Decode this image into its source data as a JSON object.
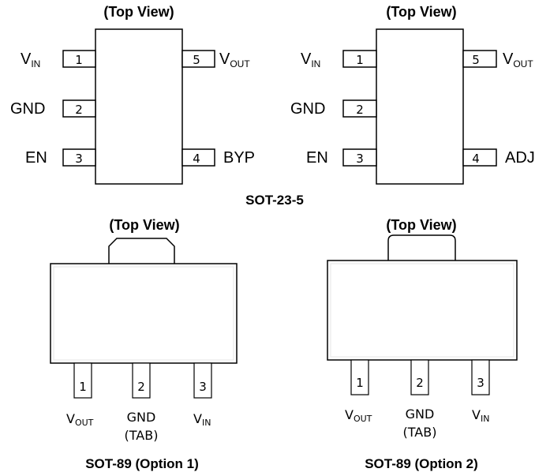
{
  "top_view_label": "(Top View)",
  "sot23_package_label": "SOT-23-5",
  "sot23_left": {
    "pins": [
      {
        "num": "1",
        "name": "V",
        "sub": "IN"
      },
      {
        "num": "2",
        "name": "GND",
        "sub": ""
      },
      {
        "num": "3",
        "name": "EN",
        "sub": ""
      },
      {
        "num": "4",
        "name": "BYP",
        "sub": ""
      },
      {
        "num": "5",
        "name": "V",
        "sub": "OUT"
      }
    ]
  },
  "sot23_right": {
    "pins": [
      {
        "num": "1",
        "name": "V",
        "sub": "IN"
      },
      {
        "num": "2",
        "name": "GND",
        "sub": ""
      },
      {
        "num": "3",
        "name": "EN",
        "sub": ""
      },
      {
        "num": "4",
        "name": "ADJ",
        "sub": ""
      },
      {
        "num": "5",
        "name": "V",
        "sub": "OUT"
      }
    ]
  },
  "sot89_opt1": {
    "caption": "SOT-89 (Option 1)",
    "pins": [
      {
        "num": "1",
        "name": "V",
        "sub": "OUT"
      },
      {
        "num": "2",
        "name": "GND",
        "sub": "",
        "note": "(TAB)"
      },
      {
        "num": "3",
        "name": "V",
        "sub": "IN"
      }
    ]
  },
  "sot89_opt2": {
    "caption": "SOT-89 (Option 2)",
    "pins": [
      {
        "num": "1",
        "name": "V",
        "sub": "OUT"
      },
      {
        "num": "2",
        "name": "GND",
        "sub": "",
        "note": "(TAB)"
      },
      {
        "num": "3",
        "name": "V",
        "sub": "IN"
      }
    ]
  }
}
